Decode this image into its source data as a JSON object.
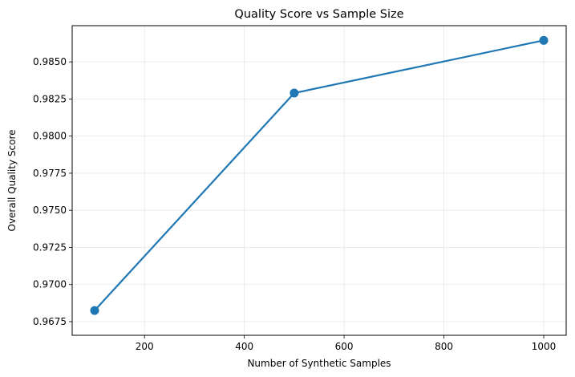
{
  "chart_data": {
    "type": "line",
    "title": "Quality Score vs Sample Size",
    "xlabel": "Number of Synthetic Samples",
    "ylabel": "Overall Quality Score",
    "x": [
      100,
      500,
      1000
    ],
    "series": [
      {
        "values": [
          0.96825,
          0.9829,
          0.98645
        ]
      }
    ],
    "xlim": [
      55,
      1045
    ],
    "ylim": [
      0.96658,
      0.98744
    ],
    "xticks": [
      200,
      400,
      600,
      800,
      1000
    ],
    "xtick_labels": [
      "200",
      "400",
      "600",
      "800",
      "1000"
    ],
    "yticks": [
      0.9675,
      0.97,
      0.9725,
      0.975,
      0.9775,
      0.98,
      0.9825,
      0.985
    ],
    "ytick_labels": [
      "0.9675",
      "0.9700",
      "0.9725",
      "0.9750",
      "0.9775",
      "0.9800",
      "0.9825",
      "0.9850"
    ],
    "grid": true,
    "line_color": "#1f77b4",
    "marker": "circle"
  }
}
